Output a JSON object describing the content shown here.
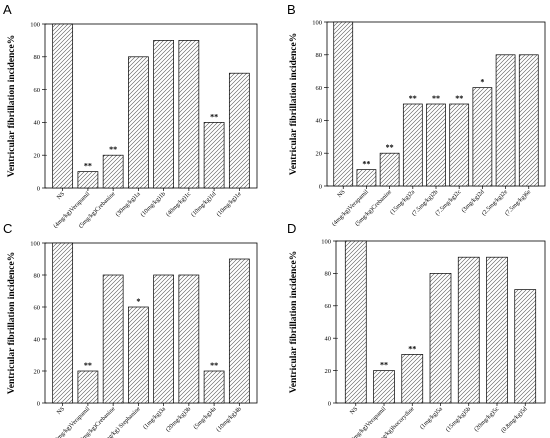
{
  "chart_data": [
    {
      "type": "bar",
      "panel_label": "A",
      "categories": [
        "NS",
        "(4mg/kg)Verapamil",
        "(5mg/kg)Crebanine",
        "(30mg/kg)1a",
        "(10mg/kg)1b",
        "(40mg/kg)1c",
        "(10mg/kg)1d",
        "(10mg/kg)1e"
      ],
      "values": [
        100,
        10,
        20,
        80,
        90,
        90,
        40,
        70
      ],
      "annotations": [
        "",
        "**",
        "**",
        "",
        "",
        "",
        "**",
        ""
      ],
      "ylabel": "Ventricular fibrillation incidence%",
      "ylim": [
        0,
        100
      ],
      "yticks": [
        "0",
        "20",
        "40",
        "60",
        "80",
        "100"
      ]
    },
    {
      "type": "bar",
      "panel_label": "B",
      "categories": [
        "NS",
        "(4mg/kg)Verapamil",
        "(5mg/kg)Crebanine",
        "(15mg/kg)2a",
        "(7.5mg/kg)2b",
        "(7.5mg/kg)2c",
        "(3mg/kg)2d",
        "(2.5mg/kg)2e",
        "(7.5mg/kg)6e"
      ],
      "values": [
        100,
        10,
        20,
        50,
        50,
        50,
        60,
        80,
        80
      ],
      "annotations": [
        "",
        "**",
        "**",
        "**",
        "**",
        "**",
        "*",
        "",
        ""
      ],
      "ylabel": "Ventricular fibrillation incidence%",
      "ylim": [
        0,
        100
      ],
      "yticks": [
        "0",
        "20",
        "40",
        "60",
        "80",
        "100"
      ]
    },
    {
      "type": "bar",
      "panel_label": "C",
      "categories": [
        "NS",
        "(4mg/kg)Verapamil",
        "(5mg/kg)Crebanine",
        "(5mg/kg) Stephanine",
        "(1mg/kg)3a",
        "(20mg/kg)3b",
        "(5mg/kg)4a",
        "(10mg/kg)4b"
      ],
      "values": [
        100,
        20,
        80,
        60,
        80,
        80,
        20,
        90
      ],
      "annotations": [
        "",
        "**",
        "",
        "*",
        "",
        "",
        "**",
        ""
      ],
      "ylabel": "Ventricular fibrillation incidence%",
      "ylim": [
        0,
        100
      ],
      "yticks": [
        "0",
        "20",
        "40",
        "60",
        "80",
        "100"
      ]
    },
    {
      "type": "bar",
      "panel_label": "D",
      "categories": [
        "NS",
        "(4mg/kg)Verapamil",
        "(10mg/kg)Isocorydine",
        "(1mg/kg)5a",
        "(15mg/kg)5b",
        "(20mg/kg)5c",
        "(0.8mg/kg)5d"
      ],
      "values": [
        100,
        20,
        30,
        80,
        90,
        90,
        70
      ],
      "annotations": [
        "",
        "**",
        "**",
        "",
        "",
        "",
        ""
      ],
      "ylabel": "Ventricular fibrillation incidence%",
      "ylim": [
        0,
        100
      ],
      "yticks": [
        "0",
        "20",
        "40",
        "60",
        "80",
        "100"
      ]
    }
  ]
}
